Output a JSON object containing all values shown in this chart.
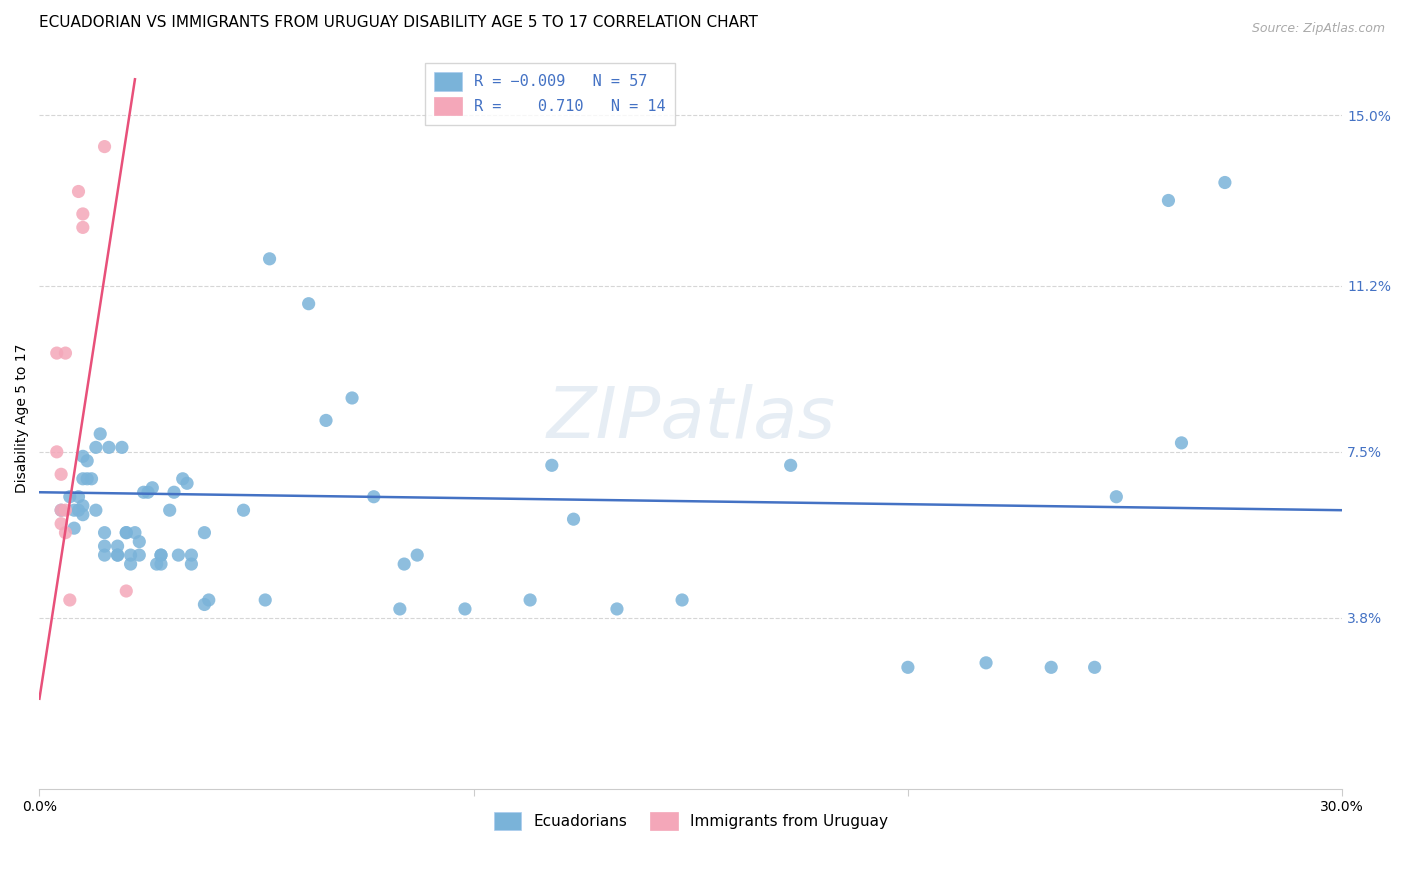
{
  "title": "ECUADORIAN VS IMMIGRANTS FROM URUGUAY DISABILITY AGE 5 TO 17 CORRELATION CHART",
  "source": "Source: ZipAtlas.com",
  "xlabel": "",
  "ylabel": "Disability Age 5 to 17",
  "xlim": [
    0.0,
    0.3
  ],
  "ylim": [
    0.0,
    0.165
  ],
  "yticks": [
    0.038,
    0.075,
    0.112,
    0.15
  ],
  "ytick_labels": [
    "3.8%",
    "7.5%",
    "11.2%",
    "15.0%"
  ],
  "xticks": [
    0.0,
    0.1,
    0.2,
    0.3
  ],
  "xtick_labels": [
    "0.0%",
    "",
    "",
    "30.0%"
  ],
  "blue_scatter": [
    [
      0.005,
      0.062
    ],
    [
      0.007,
      0.065
    ],
    [
      0.008,
      0.058
    ],
    [
      0.008,
      0.062
    ],
    [
      0.009,
      0.065
    ],
    [
      0.009,
      0.062
    ],
    [
      0.01,
      0.063
    ],
    [
      0.01,
      0.061
    ],
    [
      0.01,
      0.069
    ],
    [
      0.01,
      0.074
    ],
    [
      0.011,
      0.069
    ],
    [
      0.011,
      0.073
    ],
    [
      0.012,
      0.069
    ],
    [
      0.013,
      0.062
    ],
    [
      0.013,
      0.076
    ],
    [
      0.014,
      0.079
    ],
    [
      0.015,
      0.057
    ],
    [
      0.015,
      0.052
    ],
    [
      0.015,
      0.054
    ],
    [
      0.016,
      0.076
    ],
    [
      0.018,
      0.052
    ],
    [
      0.018,
      0.054
    ],
    [
      0.018,
      0.052
    ],
    [
      0.019,
      0.076
    ],
    [
      0.02,
      0.057
    ],
    [
      0.02,
      0.057
    ],
    [
      0.021,
      0.052
    ],
    [
      0.021,
      0.05
    ],
    [
      0.022,
      0.057
    ],
    [
      0.023,
      0.055
    ],
    [
      0.023,
      0.052
    ],
    [
      0.024,
      0.066
    ],
    [
      0.025,
      0.066
    ],
    [
      0.026,
      0.067
    ],
    [
      0.027,
      0.05
    ],
    [
      0.028,
      0.052
    ],
    [
      0.028,
      0.05
    ],
    [
      0.028,
      0.052
    ],
    [
      0.03,
      0.062
    ],
    [
      0.031,
      0.066
    ],
    [
      0.032,
      0.052
    ],
    [
      0.033,
      0.069
    ],
    [
      0.034,
      0.068
    ],
    [
      0.035,
      0.05
    ],
    [
      0.035,
      0.052
    ],
    [
      0.038,
      0.057
    ],
    [
      0.038,
      0.041
    ],
    [
      0.039,
      0.042
    ],
    [
      0.047,
      0.062
    ],
    [
      0.052,
      0.042
    ],
    [
      0.053,
      0.118
    ],
    [
      0.062,
      0.108
    ],
    [
      0.066,
      0.082
    ],
    [
      0.072,
      0.087
    ],
    [
      0.077,
      0.065
    ],
    [
      0.083,
      0.04
    ],
    [
      0.084,
      0.05
    ],
    [
      0.087,
      0.052
    ],
    [
      0.098,
      0.04
    ],
    [
      0.113,
      0.042
    ],
    [
      0.118,
      0.072
    ],
    [
      0.123,
      0.06
    ],
    [
      0.133,
      0.04
    ],
    [
      0.148,
      0.042
    ],
    [
      0.173,
      0.072
    ],
    [
      0.2,
      0.027
    ],
    [
      0.218,
      0.028
    ],
    [
      0.233,
      0.027
    ],
    [
      0.243,
      0.027
    ],
    [
      0.248,
      0.065
    ],
    [
      0.26,
      0.131
    ],
    [
      0.263,
      0.077
    ],
    [
      0.273,
      0.135
    ]
  ],
  "pink_scatter": [
    [
      0.004,
      0.097
    ],
    [
      0.004,
      0.075
    ],
    [
      0.005,
      0.07
    ],
    [
      0.005,
      0.062
    ],
    [
      0.005,
      0.059
    ],
    [
      0.006,
      0.097
    ],
    [
      0.006,
      0.062
    ],
    [
      0.006,
      0.057
    ],
    [
      0.007,
      0.042
    ],
    [
      0.009,
      0.133
    ],
    [
      0.01,
      0.128
    ],
    [
      0.01,
      0.125
    ],
    [
      0.015,
      0.143
    ],
    [
      0.02,
      0.044
    ]
  ],
  "blue_line_x": [
    0.0,
    0.3
  ],
  "blue_line_y": [
    0.066,
    0.062
  ],
  "pink_line_x": [
    0.0,
    0.022
  ],
  "pink_line_y": [
    0.02,
    0.158
  ],
  "dot_color_blue": "#7ab3d9",
  "dot_color_pink": "#f4a7b9",
  "line_color_blue": "#4472c4",
  "line_color_pink": "#e8507a",
  "grid_color": "#cccccc",
  "background_color": "#ffffff",
  "watermark": "ZIPatlas",
  "title_fontsize": 11,
  "axis_label_fontsize": 10,
  "tick_fontsize": 10,
  "legend_fontsize": 11
}
